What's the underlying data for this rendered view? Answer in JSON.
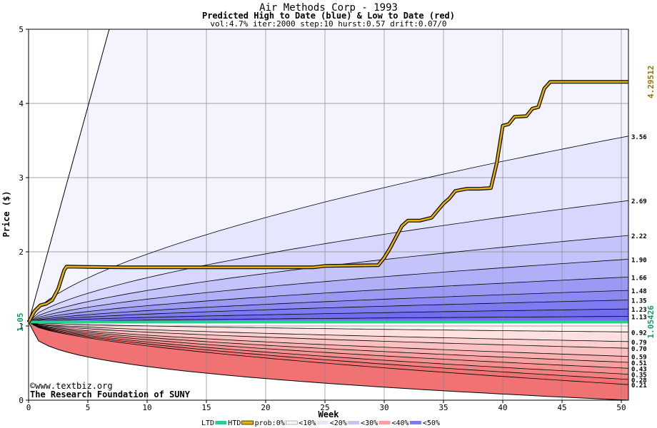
{
  "chart_data": {
    "type": "area",
    "title": "Air Methods Corp - 1993",
    "subtitle": "Predicted High to Date (blue) &  Low to Date (red)",
    "params": "vol:4.7% iter:2000 step:10 hurst:0.57 drift:0.07/0",
    "xlabel": "Week",
    "ylabel": "Price ($)",
    "xlim": [
      0,
      50.6
    ],
    "ylim": [
      0,
      5
    ],
    "x_ticks": [
      0,
      5,
      10,
      15,
      20,
      25,
      30,
      35,
      40,
      45,
      50
    ],
    "y_ticks": [
      0,
      1,
      2,
      3,
      4,
      5
    ],
    "start_value": 1.05,
    "start_label": "1.05",
    "htd_value_label": "4.29512",
    "ltd_value_label": "1.05426",
    "watermark": [
      "©www.textbiz.org",
      "The Research Foundation of SUNY"
    ],
    "upper_quantiles": [
      {
        "label": "3.56",
        "end": 3.56
      },
      {
        "label": "2.69",
        "end": 2.69
      },
      {
        "label": "2.22",
        "end": 2.22
      },
      {
        "label": "1.90",
        "end": 1.9
      },
      {
        "label": "1.66",
        "end": 1.66
      },
      {
        "label": "1.48",
        "end": 1.48
      },
      {
        "label": "1.35",
        "end": 1.35
      },
      {
        "label": "1.23",
        "end": 1.23
      },
      {
        "label": "1.13",
        "end": 1.13
      }
    ],
    "lower_quantiles": [
      {
        "label": "0.92",
        "end": 0.92
      },
      {
        "label": "0.79",
        "end": 0.79
      },
      {
        "label": "0.70",
        "end": 0.7
      },
      {
        "label": "0.59",
        "end": 0.59
      },
      {
        "label": "0.51",
        "end": 0.51
      },
      {
        "label": "0.43",
        "end": 0.43
      },
      {
        "label": "0.35",
        "end": 0.35
      },
      {
        "label": "0.28",
        "end": 0.28
      },
      {
        "label": "0.21",
        "end": 0.21
      }
    ],
    "htd_series": {
      "name": "HTD",
      "x": [
        0,
        0.5,
        1,
        1.5,
        2,
        2.5,
        3,
        3.2,
        8,
        24,
        25,
        29.5,
        30,
        30.5,
        31,
        31.5,
        32,
        33,
        34,
        35,
        35.5,
        36,
        37,
        38,
        39,
        39.5,
        40,
        40.5,
        41,
        42,
        42.5,
        43,
        43.5,
        44,
        50.6
      ],
      "y": [
        1.05,
        1.2,
        1.28,
        1.3,
        1.35,
        1.5,
        1.75,
        1.8,
        1.79,
        1.79,
        1.81,
        1.82,
        1.92,
        2.05,
        2.2,
        2.35,
        2.42,
        2.42,
        2.46,
        2.65,
        2.72,
        2.82,
        2.85,
        2.85,
        2.86,
        3.2,
        3.7,
        3.72,
        3.82,
        3.83,
        3.93,
        3.95,
        4.2,
        4.29,
        4.29
      ]
    },
    "ltd_series": {
      "name": "LTD",
      "x": [
        0,
        50.6
      ],
      "y": [
        1.05426,
        1.05426
      ]
    },
    "legend": {
      "ltd": "LTD",
      "htd": "HTD",
      "prob": "prob:0%",
      "p10": "<10%",
      "p20": "<20%",
      "p30": "<30%",
      "p40": "<40%",
      "p50": "<50%"
    },
    "colors": {
      "htd": "#e8b000",
      "ltd": "#2ecc8e",
      "htd_label": "#9a7000",
      "ltd_label": "#119966",
      "grid": "#888888",
      "blue_bands": [
        "#f4f4ff",
        "#e6e6ff",
        "#d6d6ff",
        "#c4c4fa",
        "#b0b0f8",
        "#9a9af5",
        "#8a8af2",
        "#7c7cf0",
        "#6e6eee"
      ],
      "red_bands": [
        "#fff2f2",
        "#ffe0e0",
        "#fdd0d0",
        "#fbc0c0",
        "#f8b0b0",
        "#f6a0a0",
        "#f49090",
        "#f28080",
        "#f07272"
      ]
    }
  }
}
